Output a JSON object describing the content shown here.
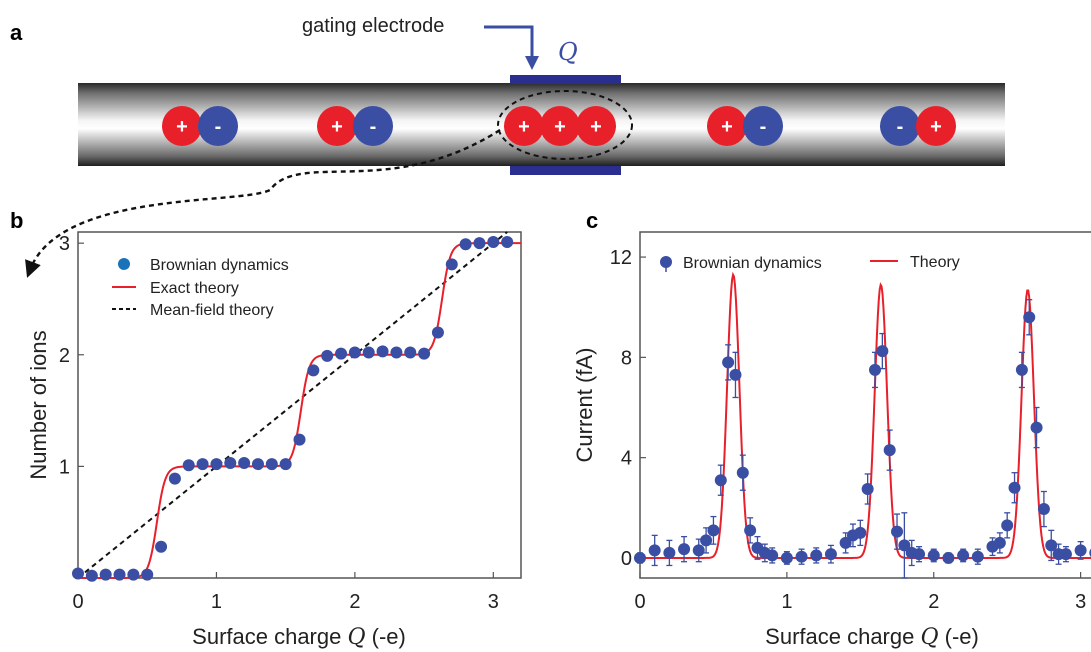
{
  "panels": {
    "a": {
      "letter": "a",
      "electrode_label": "gating electrode",
      "charge_symbol": "Q",
      "plus_sign": "+",
      "minus_sign": "-",
      "ion_groups": [
        {
          "kind": "pair",
          "order": [
            "+",
            "-"
          ]
        },
        {
          "kind": "pair",
          "order": [
            "+",
            "-"
          ]
        },
        {
          "kind": "triple",
          "order": [
            "+",
            "+",
            "+"
          ]
        },
        {
          "kind": "pair",
          "order": [
            "+",
            "-"
          ]
        },
        {
          "kind": "pair",
          "order": [
            "-",
            "+"
          ]
        }
      ],
      "colors": {
        "cation": "#e8202a",
        "anion": "#3a4ea3",
        "electrode": "#2a2f8f",
        "arrow": "#3a4ea3"
      }
    },
    "b": {
      "letter": "b"
    },
    "c": {
      "letter": "c"
    }
  },
  "chart_data": [
    {
      "type": "line",
      "panel": "b",
      "xlabel": "Surface charge Q (-e)",
      "xlabel_text": "Surface charge ",
      "xlabel_symbol": "Q",
      "xlabel_unit": " (-e)",
      "ylabel": "Number of ions",
      "xlim": [
        0,
        3.2
      ],
      "ylim": [
        0,
        3.1
      ],
      "xticks": [
        0,
        1,
        2,
        3
      ],
      "yticks": [
        1,
        2,
        3
      ],
      "legend": [
        "Brownian dynamics",
        "Exact theory",
        "Mean-field theory"
      ],
      "legend_position": "top-left",
      "series": [
        {
          "name": "Brownian dynamics",
          "style": "markers",
          "color": "#3a4ea3",
          "x": [
            0.0,
            0.1,
            0.2,
            0.3,
            0.4,
            0.5,
            0.6,
            0.7,
            0.8,
            0.9,
            1.0,
            1.1,
            1.2,
            1.3,
            1.4,
            1.5,
            1.6,
            1.7,
            1.8,
            1.9,
            2.0,
            2.1,
            2.2,
            2.3,
            2.4,
            2.5,
            2.6,
            2.7,
            2.8,
            2.9,
            3.0,
            3.1
          ],
          "y": [
            0.04,
            0.02,
            0.03,
            0.03,
            0.03,
            0.03,
            0.28,
            0.89,
            1.01,
            1.02,
            1.02,
            1.03,
            1.03,
            1.02,
            1.02,
            1.02,
            1.24,
            1.86,
            1.99,
            2.01,
            2.02,
            2.02,
            2.03,
            2.02,
            2.02,
            2.01,
            2.2,
            2.81,
            2.99,
            3.0,
            3.01,
            3.01
          ]
        },
        {
          "name": "Exact theory",
          "style": "line",
          "color": "#e8202a",
          "steps": [
            0.57,
            1.61,
            2.63
          ],
          "width": 0.03
        },
        {
          "name": "Mean-field theory",
          "style": "dashed",
          "color": "#111111",
          "x": [
            0,
            3.2
          ],
          "y": [
            0,
            3.2
          ]
        }
      ]
    },
    {
      "type": "line",
      "panel": "c",
      "xlabel": "Surface charge Q (-e)",
      "xlabel_text": "Surface charge ",
      "xlabel_symbol": "Q",
      "xlabel_unit": " (-e)",
      "ylabel": "Current (fA)",
      "xlim": [
        0,
        3.2
      ],
      "ylim": [
        -0.8,
        13
      ],
      "xticks": [
        0,
        1,
        2,
        3
      ],
      "yticks": [
        0,
        4,
        8,
        12
      ],
      "legend": [
        "Brownian dynamics",
        "Theory"
      ],
      "legend_position": "top",
      "series": [
        {
          "name": "Brownian dynamics",
          "style": "markers-errorbars",
          "color": "#3a4ea3",
          "x": [
            0.0,
            0.1,
            0.2,
            0.3,
            0.4,
            0.45,
            0.5,
            0.55,
            0.6,
            0.65,
            0.7,
            0.75,
            0.8,
            0.85,
            0.9,
            1.0,
            1.1,
            1.2,
            1.3,
            1.4,
            1.45,
            1.5,
            1.55,
            1.6,
            1.65,
            1.7,
            1.75,
            1.8,
            1.85,
            1.9,
            2.0,
            2.1,
            2.2,
            2.3,
            2.4,
            2.45,
            2.5,
            2.55,
            2.6,
            2.65,
            2.7,
            2.75,
            2.8,
            2.85,
            2.9,
            3.0,
            3.1
          ],
          "y": [
            0.0,
            0.3,
            0.2,
            0.35,
            0.3,
            0.7,
            1.1,
            3.1,
            7.8,
            7.3,
            3.4,
            1.1,
            0.4,
            0.2,
            0.1,
            0.0,
            0.05,
            0.1,
            0.15,
            0.6,
            0.9,
            1.0,
            2.75,
            7.5,
            8.25,
            4.3,
            1.05,
            0.5,
            0.2,
            0.15,
            0.1,
            0.0,
            0.1,
            0.05,
            0.45,
            0.6,
            1.3,
            2.8,
            7.5,
            9.6,
            5.2,
            1.95,
            0.5,
            0.15,
            0.15,
            0.3,
            0.2
          ],
          "err": [
            0.2,
            0.6,
            0.5,
            0.5,
            0.45,
            0.5,
            0.55,
            0.6,
            0.7,
            0.9,
            0.7,
            0.5,
            0.45,
            0.35,
            0.3,
            0.25,
            0.3,
            0.3,
            0.35,
            0.4,
            0.45,
            0.5,
            0.6,
            0.7,
            0.7,
            0.8,
            0.7,
            1.3,
            0.5,
            0.3,
            0.25,
            0.2,
            0.25,
            0.3,
            0.35,
            0.4,
            0.5,
            0.6,
            0.7,
            0.7,
            0.8,
            0.7,
            0.6,
            0.4,
            0.3,
            0.35,
            0.3
          ]
        },
        {
          "name": "Theory",
          "style": "line",
          "color": "#e8202a",
          "peaks": [
            0.635,
            1.64,
            2.64
          ],
          "amplitudes": [
            11.3,
            10.9,
            10.7
          ],
          "sigma": 0.042
        }
      ]
    }
  ]
}
